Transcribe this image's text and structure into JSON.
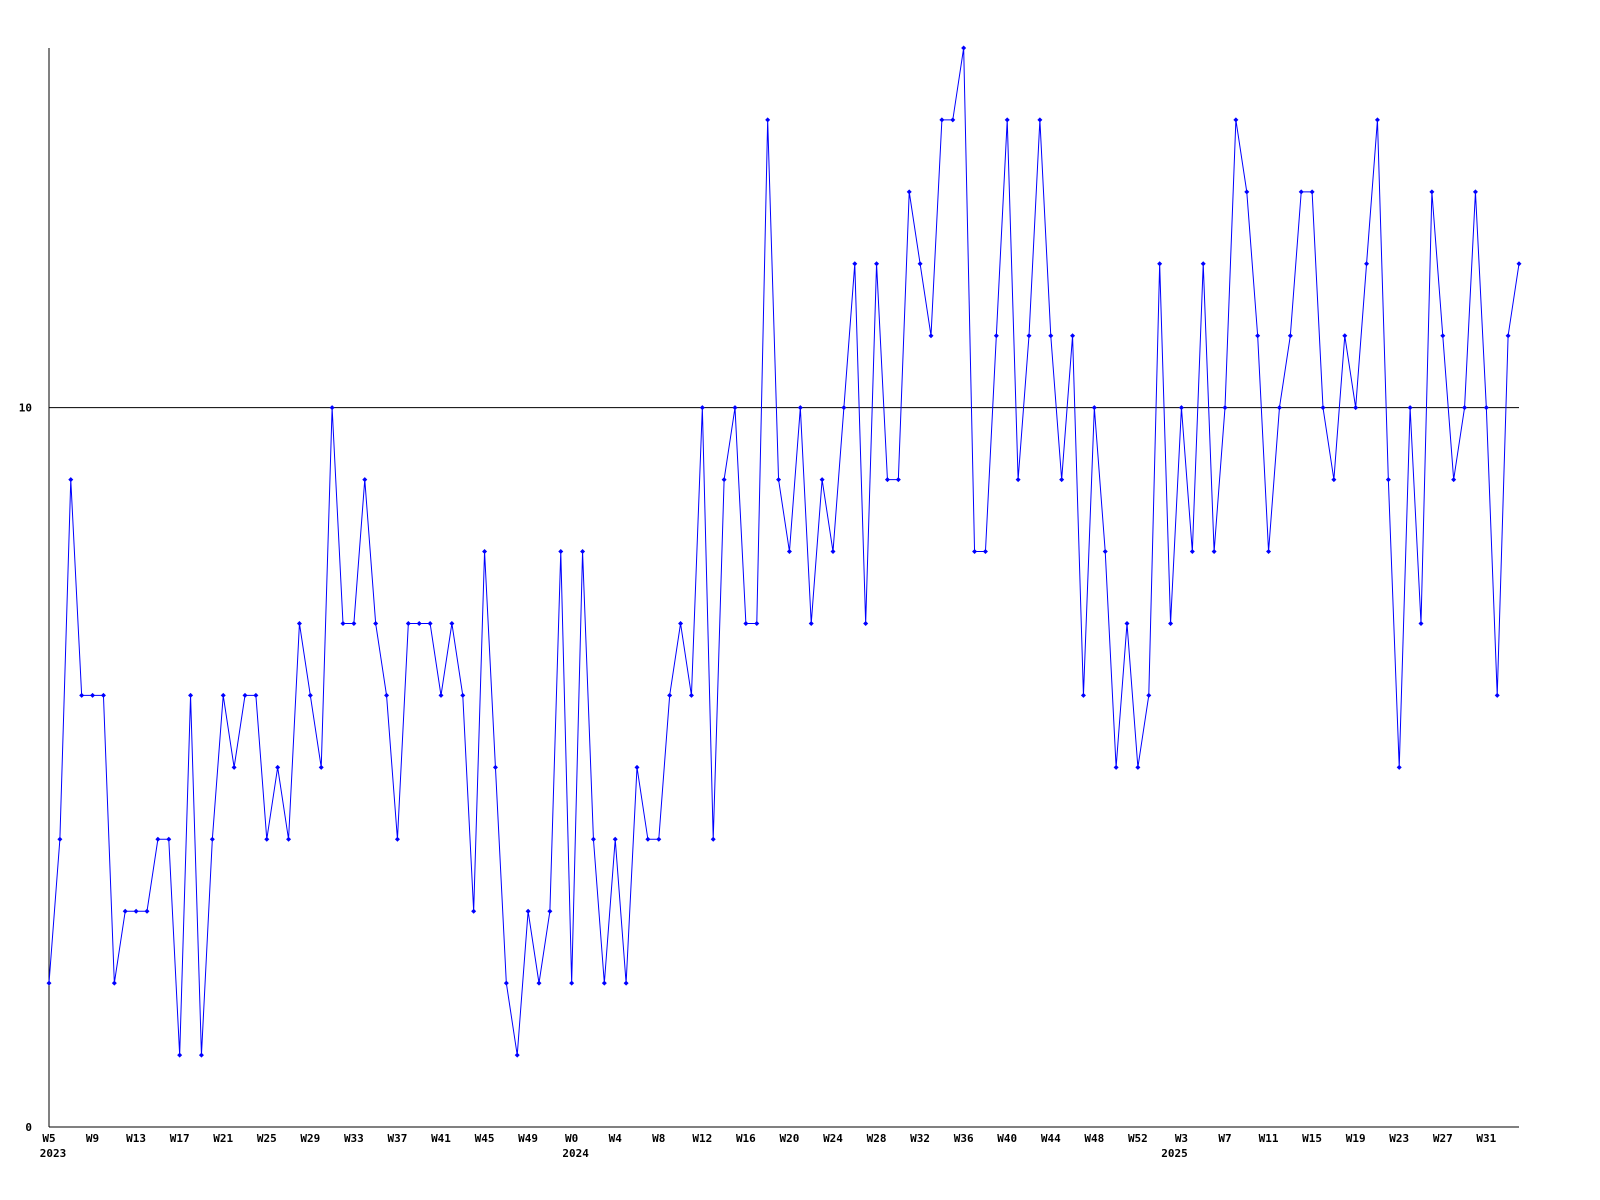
{
  "chart_data": {
    "type": "line",
    "categories": [
      "W5",
      null,
      null,
      null,
      "W9",
      null,
      null,
      null,
      "W13",
      null,
      null,
      null,
      "W17",
      null,
      null,
      null,
      "W21",
      null,
      null,
      null,
      "W25",
      null,
      null,
      null,
      "W29",
      null,
      null,
      null,
      "W33",
      null,
      null,
      null,
      "W37",
      null,
      null,
      null,
      "W41",
      null,
      null,
      null,
      "W45",
      null,
      null,
      null,
      "W49",
      null,
      null,
      null,
      "W0",
      null,
      null,
      null,
      "W4",
      null,
      null,
      null,
      "W8",
      null,
      null,
      null,
      "W12",
      null,
      null,
      null,
      "W16",
      null,
      null,
      null,
      "W20",
      null,
      null,
      null,
      "W24",
      null,
      null,
      null,
      "W28",
      null,
      null,
      null,
      "W32",
      null,
      null,
      null,
      "W36",
      null,
      null,
      null,
      "W40",
      null,
      null,
      null,
      "W44",
      null,
      null,
      null,
      "W48",
      null,
      null,
      null,
      "W52",
      null,
      null,
      null,
      "W3",
      null,
      null,
      null,
      "W7",
      null,
      null,
      null,
      "W11",
      null,
      null,
      null,
      "W15",
      null,
      null,
      null,
      "W19",
      null,
      null,
      null,
      "W23",
      null,
      null,
      null,
      "W27",
      null,
      null,
      null,
      "W31",
      null,
      null,
      null
    ],
    "year_labels": [
      "2023",
      null,
      null,
      null,
      null,
      null,
      null,
      null,
      null,
      null,
      null,
      null,
      null,
      null,
      null,
      null,
      null,
      null,
      null,
      null,
      null,
      null,
      null,
      null,
      null,
      null,
      null,
      null,
      null,
      null,
      null,
      null,
      null,
      null,
      null,
      null,
      null,
      null,
      null,
      null,
      null,
      null,
      null,
      null,
      null,
      null,
      null,
      null,
      "2024",
      null,
      null,
      null,
      null,
      null,
      null,
      null,
      null,
      null,
      null,
      null,
      null,
      null,
      null,
      null,
      null,
      null,
      null,
      null,
      null,
      null,
      null,
      null,
      null,
      null,
      null,
      null,
      null,
      null,
      null,
      null,
      null,
      null,
      null,
      null,
      null,
      null,
      null,
      null,
      null,
      null,
      null,
      null,
      null,
      null,
      null,
      null,
      null,
      null,
      null,
      null,
      null,
      null,
      null,
      "2025",
      null,
      null,
      null,
      null,
      null,
      null,
      null,
      null,
      null,
      null,
      null,
      null,
      null,
      null,
      null,
      null,
      null,
      null,
      null,
      null,
      null,
      null,
      null,
      null,
      null,
      null,
      null,
      null,
      null,
      null,
      null,
      null,
      null,
      null
    ],
    "series": [
      {
        "color": "#0000ff",
        "values": [
          2,
          4,
          9,
          6,
          6,
          6,
          2,
          3,
          3,
          3,
          4,
          4,
          1,
          6,
          1,
          4,
          6,
          5,
          6,
          6,
          4,
          5,
          4,
          7,
          6,
          5,
          10,
          7,
          7,
          9,
          7,
          6,
          4,
          7,
          7,
          7,
          6,
          7,
          6,
          3,
          8,
          5,
          2,
          1,
          3,
          2,
          3,
          8,
          2,
          8,
          4,
          2,
          4,
          2,
          5,
          4,
          4,
          6,
          7,
          6,
          10,
          4,
          9,
          10,
          7,
          7,
          14,
          9,
          8,
          10,
          7,
          9,
          8,
          10,
          12,
          7,
          12,
          9,
          9,
          13,
          12,
          11,
          14,
          14,
          15,
          8,
          8,
          11,
          14,
          9,
          11,
          14,
          11,
          9,
          11,
          6,
          10,
          8,
          5,
          7,
          5,
          6,
          12,
          7,
          10,
          8,
          12,
          8,
          10,
          14,
          13,
          11,
          8,
          10,
          11,
          13,
          13,
          10,
          9,
          11,
          10,
          12,
          14,
          9,
          5,
          10,
          7,
          13,
          11,
          9,
          10,
          13,
          10,
          6,
          11,
          12
        ]
      }
    ],
    "ylim": [
      0,
      15
    ],
    "yticks": [
      0,
      10
    ],
    "grid": true
  }
}
